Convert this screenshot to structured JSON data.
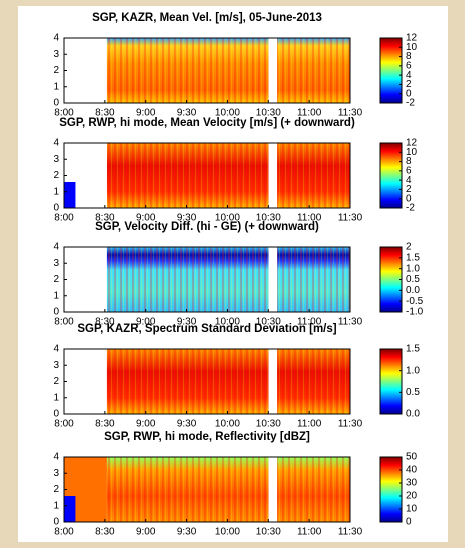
{
  "chart_data": [
    {
      "type": "heatmap",
      "title": "SGP, KAZR, Mean Vel. [m/s], 05-June-2013",
      "xlim": [
        8,
        11.5
      ],
      "xticks": [
        {
          "value": 8,
          "label": "8:00"
        },
        {
          "value": 8.5,
          "label": "8:30"
        },
        {
          "value": 9,
          "label": "9:00"
        },
        {
          "value": 9.5,
          "label": "9:30"
        },
        {
          "value": 10,
          "label": "10:00"
        },
        {
          "value": 10.5,
          "label": "10:30"
        },
        {
          "value": 11,
          "label": "11:00"
        },
        {
          "value": 11.5,
          "label": "11:30"
        }
      ],
      "ylim": [
        0,
        4
      ],
      "yticks": [
        0,
        1,
        2,
        3,
        4
      ],
      "clim": [
        -2,
        12
      ],
      "cticks": [
        -2,
        0,
        2,
        4,
        6,
        8,
        10,
        12
      ]
    },
    {
      "type": "heatmap",
      "title": "SGP, RWP, hi mode, Mean Velocity [m/s] (+ downward)",
      "xlim": [
        8,
        11.5
      ],
      "xticks": [
        {
          "value": 8,
          "label": "8:00"
        },
        {
          "value": 8.5,
          "label": "8:30"
        },
        {
          "value": 9,
          "label": "9:00"
        },
        {
          "value": 9.5,
          "label": "9:30"
        },
        {
          "value": 10,
          "label": "10:00"
        },
        {
          "value": 10.5,
          "label": "10:30"
        },
        {
          "value": 11,
          "label": "11:00"
        },
        {
          "value": 11.5,
          "label": "11:30"
        }
      ],
      "ylim": [
        0,
        4
      ],
      "yticks": [
        0,
        1,
        2,
        3,
        4
      ],
      "clim": [
        -2,
        12
      ],
      "cticks": [
        -2,
        0,
        2,
        4,
        6,
        8,
        10,
        12
      ]
    },
    {
      "type": "heatmap",
      "title": "SGP, Velocity Diff. (hi - GE) (+ downward)",
      "xlim": [
        8,
        11.5
      ],
      "xticks": [
        {
          "value": 8,
          "label": "8:00"
        },
        {
          "value": 8.5,
          "label": "8:30"
        },
        {
          "value": 9,
          "label": "9:00"
        },
        {
          "value": 9.5,
          "label": "9:30"
        },
        {
          "value": 10,
          "label": "10:00"
        },
        {
          "value": 10.5,
          "label": "10:30"
        },
        {
          "value": 11,
          "label": "11:00"
        },
        {
          "value": 11.5,
          "label": "11:30"
        }
      ],
      "ylim": [
        0,
        4
      ],
      "yticks": [
        0,
        1,
        2,
        3,
        4
      ],
      "clim": [
        -1,
        2
      ],
      "cticks": [
        {
          "value": -1,
          "label": "-1.0"
        },
        -0.5,
        {
          "value": 0,
          "label": "0.0"
        },
        0.5,
        {
          "value": 1,
          "label": "1.0"
        },
        1.5,
        2
      ]
    },
    {
      "type": "heatmap",
      "title": "SGP, KAZR, Spectrum Standard Deviation [m/s]",
      "xlim": [
        8,
        11.5
      ],
      "xticks": [
        {
          "value": 8,
          "label": "8:00"
        },
        {
          "value": 8.5,
          "label": "8:30"
        },
        {
          "value": 9,
          "label": "9:00"
        },
        {
          "value": 9.5,
          "label": "9:30"
        },
        {
          "value": 10,
          "label": "10:00"
        },
        {
          "value": 10.5,
          "label": "10:30"
        },
        {
          "value": 11,
          "label": "11:00"
        },
        {
          "value": 11.5,
          "label": "11:30"
        }
      ],
      "ylim": [
        0,
        4
      ],
      "yticks": [
        0,
        1,
        2,
        3,
        4
      ],
      "clim": [
        0,
        1.5
      ],
      "cticks": [
        {
          "value": 0,
          "label": "0.0"
        },
        0.5,
        {
          "value": 1,
          "label": "1.0"
        },
        1.5
      ]
    },
    {
      "type": "heatmap",
      "title": "SGP, RWP, hi mode, Reflectivity [dBZ]",
      "xlim": [
        8,
        11.5
      ],
      "xticks": [
        {
          "value": 8,
          "label": "8:00"
        },
        {
          "value": 8.5,
          "label": "8:30"
        },
        {
          "value": 9,
          "label": "9:00"
        },
        {
          "value": 9.5,
          "label": "9:30"
        },
        {
          "value": 10,
          "label": "10:00"
        },
        {
          "value": 10.5,
          "label": "10:30"
        },
        {
          "value": 11,
          "label": "11:00"
        },
        {
          "value": 11.5,
          "label": "11:30"
        }
      ],
      "ylim": [
        0,
        4
      ],
      "yticks": [
        0,
        1,
        2,
        3,
        4
      ],
      "clim": [
        0,
        50
      ],
      "cticks": [
        0,
        10,
        20,
        30,
        40,
        50
      ]
    }
  ]
}
